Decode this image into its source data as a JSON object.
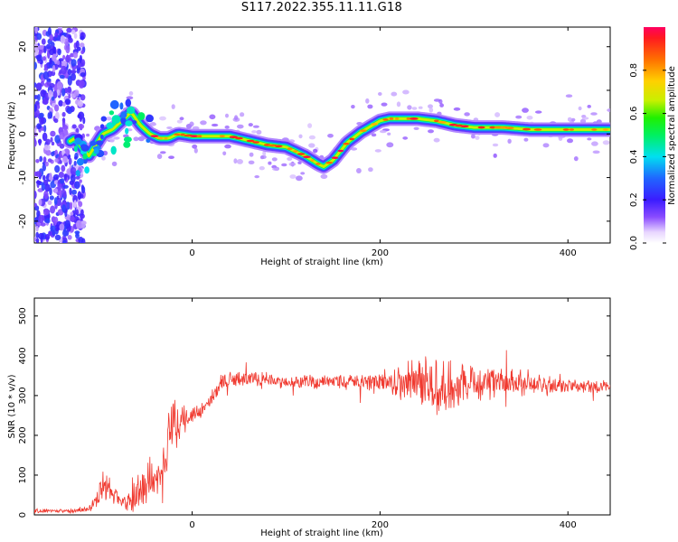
{
  "figure_title": "S117.2022.355.11.11.G18",
  "chart_data": [
    {
      "type": "heatmap",
      "title": "",
      "xlabel": "Height of straight line (km)",
      "ylabel": "Frequency (Hz)",
      "xlim": [
        -168,
        445
      ],
      "ylim": [
        -25,
        24.5
      ],
      "xticks": [
        0,
        200,
        400
      ],
      "yticks": [
        -20,
        -10,
        0,
        10,
        20
      ],
      "colorbar": {
        "label": "Normalized spectral amplitude",
        "range": [
          0,
          1
        ],
        "ticks": [
          0.0,
          0.2,
          0.4,
          0.6,
          0.8
        ],
        "colormap": "rainbow (purple-blue-cyan-green-yellow-orange-red)"
      },
      "ridge": {
        "description": "dominant frequency trace vs height",
        "x": [
          -168,
          -155,
          -140,
          -125,
          -110,
          -95,
          -85,
          -75,
          -65,
          -55,
          -45,
          -35,
          -25,
          -15,
          0,
          20,
          40,
          60,
          80,
          100,
          120,
          135,
          140,
          150,
          165,
          180,
          200,
          210,
          220,
          240,
          260,
          280,
          300,
          330,
          360,
          400,
          445
        ],
        "y": [
          -5.5,
          -4,
          -3,
          -1,
          -5,
          0,
          1,
          3,
          5,
          2,
          0,
          -1,
          -1,
          0,
          -0.5,
          -0.5,
          -0.5,
          -1.5,
          -2.5,
          -3,
          -5,
          -7,
          -7.5,
          -6,
          -2,
          0.5,
          3,
          3.5,
          3.5,
          3.5,
          3,
          2,
          1.5,
          1.5,
          1,
          1,
          1
        ]
      }
    },
    {
      "type": "line",
      "title": "",
      "xlabel": "Height of straight line (km)",
      "ylabel": "SNR (10 * v/v)",
      "xlim": [
        -168,
        445
      ],
      "ylim": [
        0,
        545
      ],
      "xticks": [
        0,
        200,
        400
      ],
      "yticks": [
        0,
        100,
        200,
        300,
        400,
        500
      ],
      "color": "#f03a30",
      "envelope": {
        "x": [
          -168,
          -130,
          -110,
          -100,
          -95,
          -85,
          -80,
          -70,
          -60,
          -50,
          -40,
          -30,
          -25,
          -20,
          -10,
          0,
          10,
          20,
          30,
          50,
          80,
          100,
          150,
          200,
          230,
          250,
          260,
          280,
          300,
          350,
          400,
          445
        ],
        "mean": [
          10,
          10,
          15,
          40,
          80,
          60,
          40,
          30,
          50,
          70,
          90,
          120,
          200,
          220,
          230,
          250,
          260,
          290,
          330,
          345,
          340,
          335,
          335,
          335,
          330,
          330,
          330,
          330,
          330,
          330,
          325,
          320
        ],
        "spread": [
          8,
          6,
          10,
          40,
          50,
          40,
          30,
          30,
          60,
          60,
          70,
          80,
          90,
          80,
          60,
          40,
          30,
          25,
          25,
          25,
          25,
          20,
          25,
          35,
          70,
          90,
          100,
          80,
          60,
          40,
          25,
          20
        ]
      }
    }
  ]
}
